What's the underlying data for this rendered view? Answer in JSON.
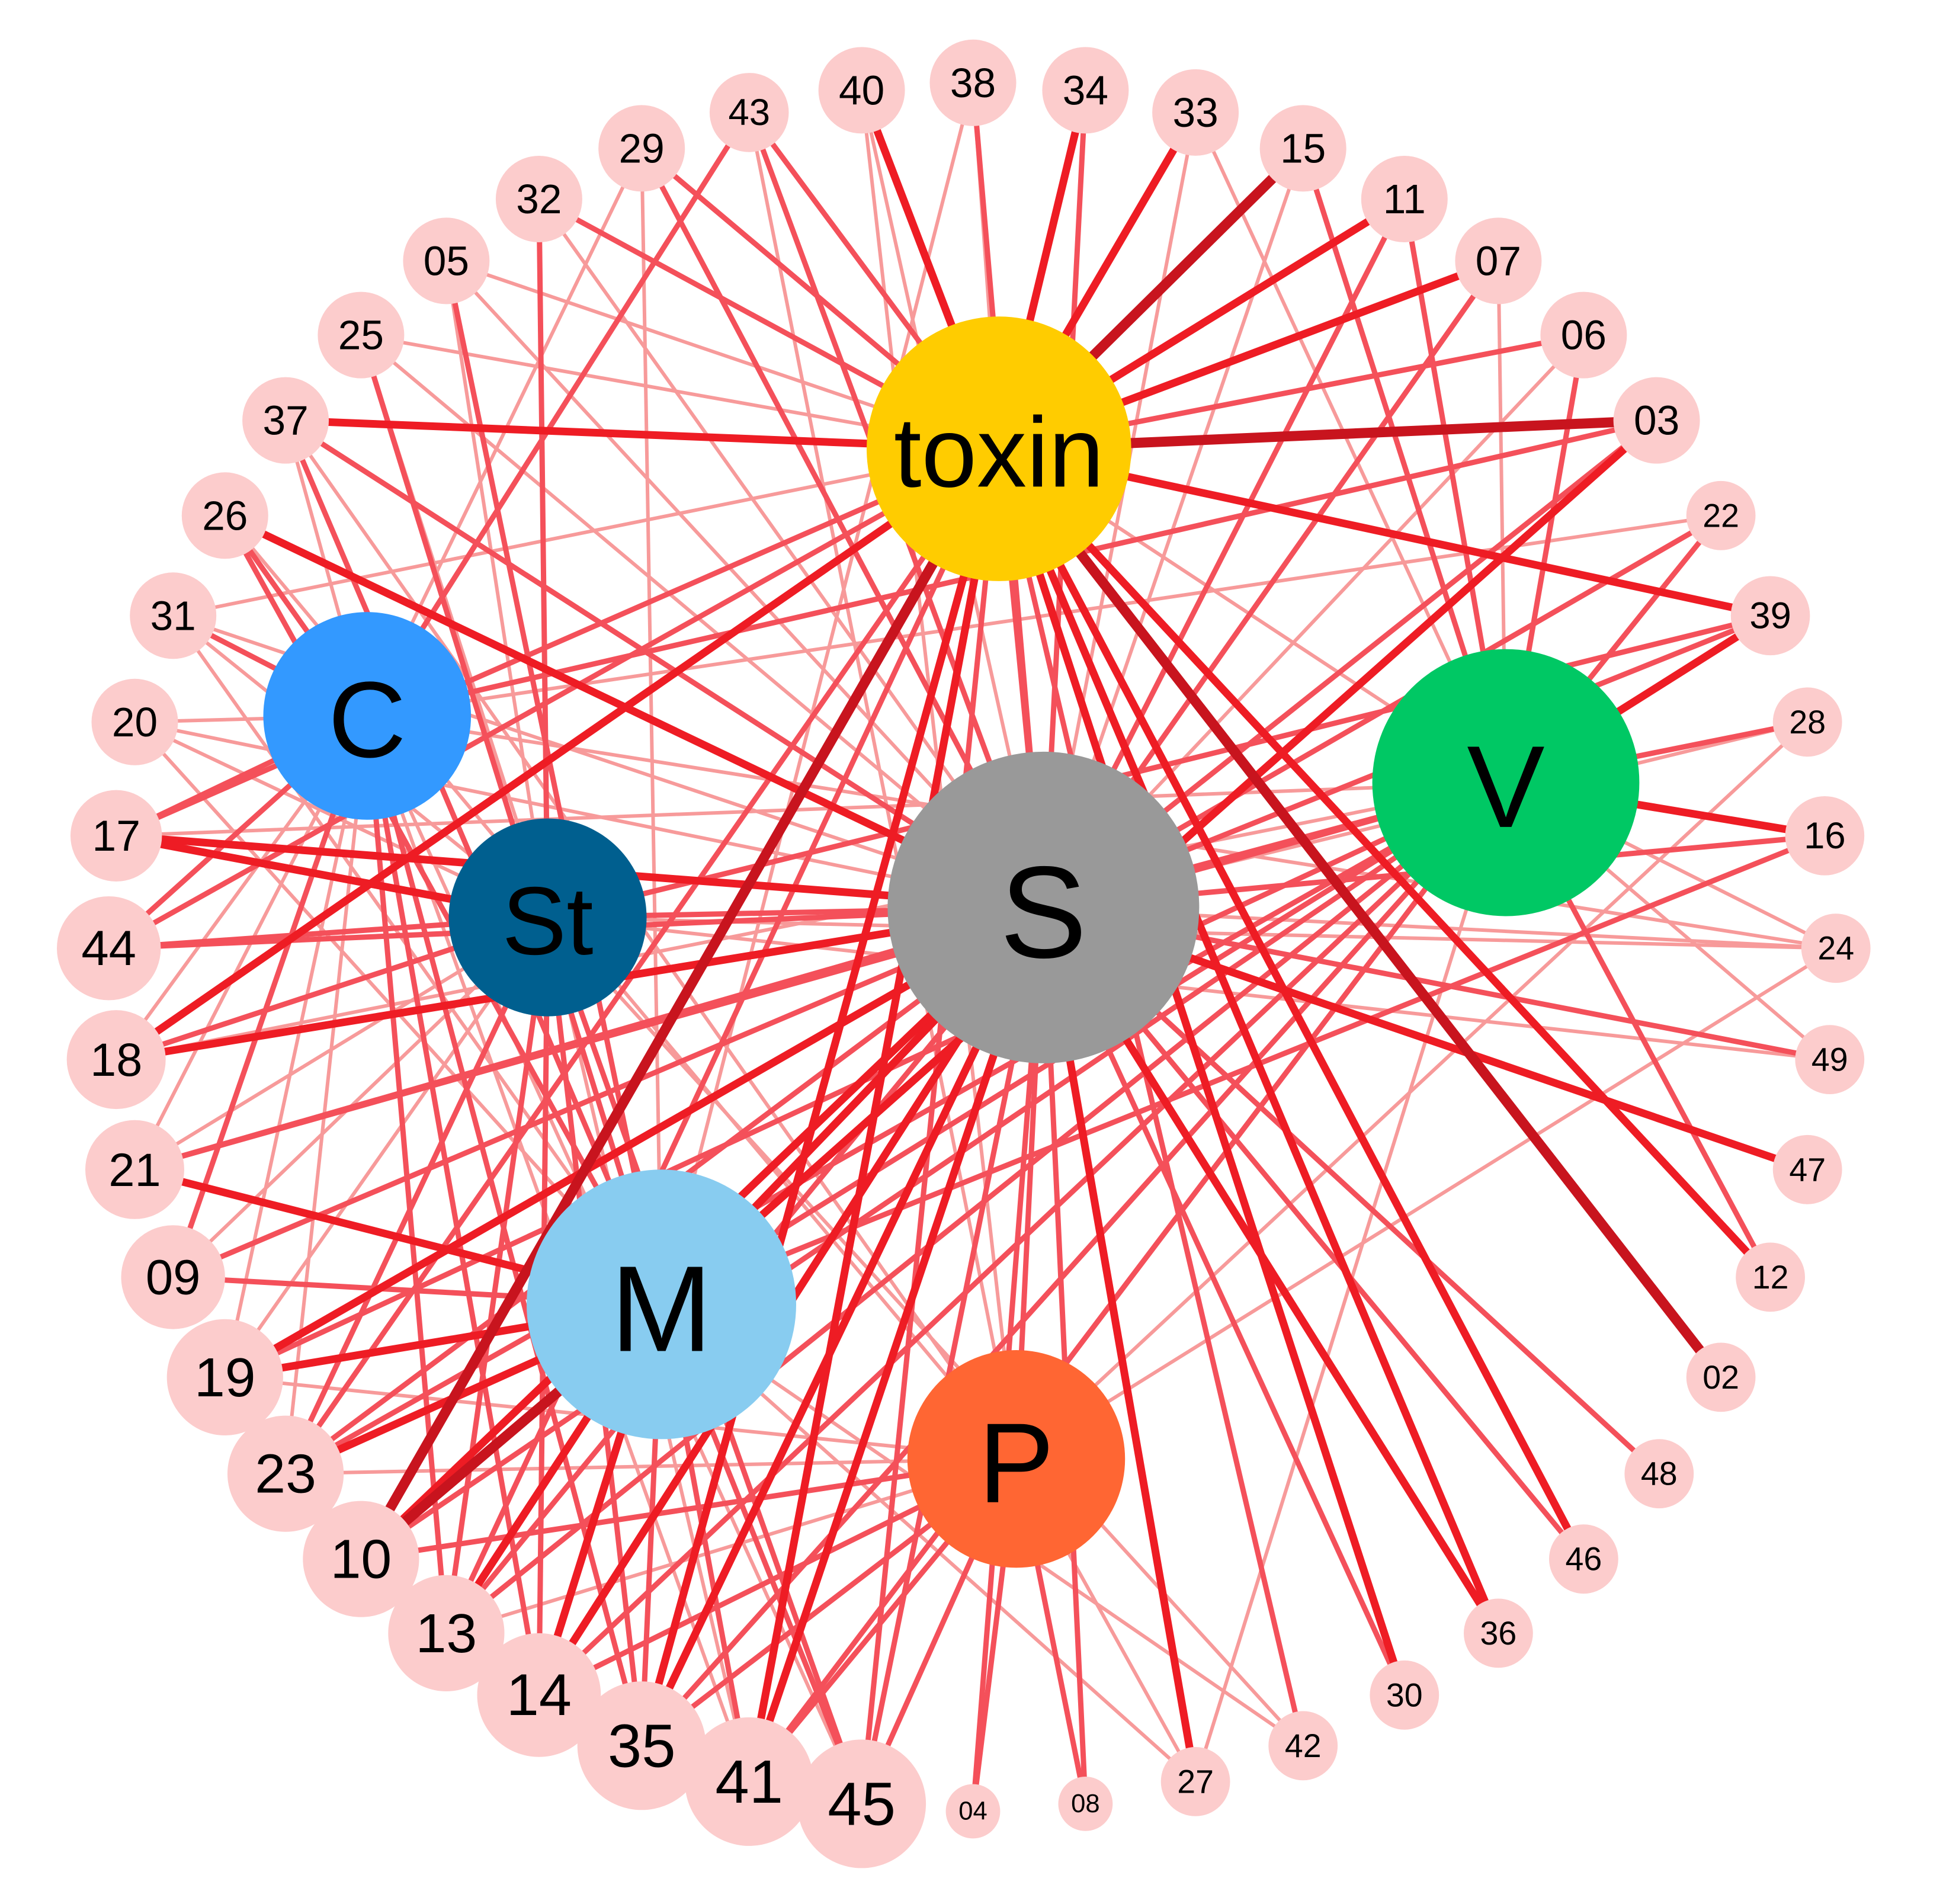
{
  "colors": {
    "peripheral_node": "#fccccc",
    "edge_light": "#f79a9a",
    "edge_mid": "#f4505a",
    "edge_strong": "#ee1c24",
    "edge_dark": "#c8141e",
    "toxin": "#ffcc00",
    "S": "#999999",
    "V": "#00c864",
    "C": "#3399ff",
    "St": "#005f8f",
    "M": "#88ccf0",
    "P": "#ff6633"
  },
  "hubs": [
    {
      "id": "toxin",
      "label": "toxin",
      "color": "#ffcc00"
    },
    {
      "id": "S",
      "label": "S",
      "color": "#999999"
    },
    {
      "id": "V",
      "label": "V",
      "color": "#00c864"
    },
    {
      "id": "C",
      "label": "C",
      "color": "#3399ff"
    },
    {
      "id": "St",
      "label": "St",
      "color": "#005f8f"
    },
    {
      "id": "M",
      "label": "M",
      "color": "#88ccf0"
    },
    {
      "id": "P",
      "label": "P",
      "color": "#ff6633"
    }
  ],
  "peripheral_nodes": [
    "40",
    "38",
    "34",
    "33",
    "15",
    "11",
    "07",
    "06",
    "03",
    "22",
    "39",
    "28",
    "16",
    "24",
    "49",
    "47",
    "12",
    "02",
    "48",
    "46",
    "36",
    "30",
    "42",
    "27",
    "08",
    "04",
    "45",
    "41",
    "35",
    "14",
    "13",
    "10",
    "23",
    "19",
    "09",
    "21",
    "18",
    "44",
    "17",
    "20",
    "31",
    "26",
    "37",
    "25",
    "05",
    "32",
    "29",
    "43"
  ],
  "edges": [
    {
      "from": "toxin",
      "to": "37",
      "w": 3
    },
    {
      "from": "toxin",
      "to": "03",
      "w": 4
    },
    {
      "from": "toxin",
      "to": "15",
      "w": 4
    },
    {
      "from": "toxin",
      "to": "11",
      "w": 3
    },
    {
      "from": "toxin",
      "to": "07",
      "w": 3
    },
    {
      "from": "toxin",
      "to": "06",
      "w": 2
    },
    {
      "from": "toxin",
      "to": "39",
      "w": 3
    },
    {
      "from": "toxin",
      "to": "40",
      "w": 3
    },
    {
      "from": "toxin",
      "to": "38",
      "w": 1
    },
    {
      "from": "toxin",
      "to": "34",
      "w": 3
    },
    {
      "from": "toxin",
      "to": "33",
      "w": 3
    },
    {
      "from": "toxin",
      "to": "43",
      "w": 2
    },
    {
      "from": "toxin",
      "to": "29",
      "w": 2
    },
    {
      "from": "toxin",
      "to": "10",
      "w": 4
    },
    {
      "from": "toxin",
      "to": "41",
      "w": 3
    },
    {
      "from": "toxin",
      "to": "35",
      "w": 3
    },
    {
      "from": "toxin",
      "to": "18",
      "w": 3
    },
    {
      "from": "toxin",
      "to": "44",
      "w": 2
    },
    {
      "from": "toxin",
      "to": "02",
      "w": 4
    },
    {
      "from": "toxin",
      "to": "12",
      "w": 3
    },
    {
      "from": "toxin",
      "to": "46",
      "w": 3
    },
    {
      "from": "toxin",
      "to": "36",
      "w": 3
    },
    {
      "from": "toxin",
      "to": "30",
      "w": 3
    },
    {
      "from": "toxin",
      "to": "42",
      "w": 2
    },
    {
      "from": "toxin",
      "to": "25",
      "w": 1
    },
    {
      "from": "toxin",
      "to": "05",
      "w": 1
    },
    {
      "from": "toxin",
      "to": "32",
      "w": 2
    },
    {
      "from": "toxin",
      "to": "17",
      "w": 2
    },
    {
      "from": "toxin",
      "to": "31",
      "w": 1
    },
    {
      "from": "toxin",
      "to": "45",
      "w": 2
    },
    {
      "from": "toxin",
      "to": "13",
      "w": 2
    },
    {
      "from": "toxin",
      "to": "23",
      "w": 2
    },
    {
      "from": "S",
      "to": "26",
      "w": 3
    },
    {
      "from": "S",
      "to": "37",
      "w": 2
    },
    {
      "from": "S",
      "to": "17",
      "w": 3
    },
    {
      "from": "S",
      "to": "18",
      "w": 3
    },
    {
      "from": "S",
      "to": "44",
      "w": 2
    },
    {
      "from": "S",
      "to": "21",
      "w": 2
    },
    {
      "from": "S",
      "to": "19",
      "w": 3
    },
    {
      "from": "S",
      "to": "23",
      "w": 2
    },
    {
      "from": "S",
      "to": "10",
      "w": 3
    },
    {
      "from": "S",
      "to": "13",
      "w": 2
    },
    {
      "from": "S",
      "to": "14",
      "w": 3
    },
    {
      "from": "S",
      "to": "35",
      "w": 3
    },
    {
      "from": "S",
      "to": "41",
      "w": 3
    },
    {
      "from": "S",
      "to": "45",
      "w": 2
    },
    {
      "from": "S",
      "to": "04",
      "w": 2
    },
    {
      "from": "S",
      "to": "08",
      "w": 2
    },
    {
      "from": "S",
      "to": "27",
      "w": 3
    },
    {
      "from": "S",
      "to": "30",
      "w": 2
    },
    {
      "from": "S",
      "to": "36",
      "w": 3
    },
    {
      "from": "S",
      "to": "46",
      "w": 2
    },
    {
      "from": "S",
      "to": "48",
      "w": 2
    },
    {
      "from": "S",
      "to": "47",
      "w": 3
    },
    {
      "from": "S",
      "to": "49",
      "w": 2
    },
    {
      "from": "S",
      "to": "24",
      "w": 1
    },
    {
      "from": "S",
      "to": "16",
      "w": 2
    },
    {
      "from": "S",
      "to": "28",
      "w": 1
    },
    {
      "from": "S",
      "to": "39",
      "w": 2
    },
    {
      "from": "S",
      "to": "22",
      "w": 2
    },
    {
      "from": "S",
      "to": "03",
      "w": 2
    },
    {
      "from": "S",
      "to": "06",
      "w": 1
    },
    {
      "from": "S",
      "to": "07",
      "w": 2
    },
    {
      "from": "S",
      "to": "11",
      "w": 2
    },
    {
      "from": "S",
      "to": "15",
      "w": 1
    },
    {
      "from": "S",
      "to": "33",
      "w": 1
    },
    {
      "from": "S",
      "to": "34",
      "w": 2
    },
    {
      "from": "S",
      "to": "38",
      "w": 2
    },
    {
      "from": "S",
      "to": "40",
      "w": 1
    },
    {
      "from": "S",
      "to": "43",
      "w": 2
    },
    {
      "from": "S",
      "to": "29",
      "w": 2
    },
    {
      "from": "S",
      "to": "32",
      "w": 1
    },
    {
      "from": "S",
      "to": "05",
      "w": 1
    },
    {
      "from": "S",
      "to": "25",
      "w": 1
    },
    {
      "from": "S",
      "to": "31",
      "w": 1
    },
    {
      "from": "S",
      "to": "20",
      "w": 1
    },
    {
      "from": "S",
      "to": "09",
      "w": 2
    },
    {
      "from": "V",
      "to": "16",
      "w": 3
    },
    {
      "from": "V",
      "to": "28",
      "w": 2
    },
    {
      "from": "V",
      "to": "39",
      "w": 3
    },
    {
      "from": "V",
      "to": "24",
      "w": 1
    },
    {
      "from": "V",
      "to": "22",
      "w": 2
    },
    {
      "from": "V",
      "to": "06",
      "w": 2
    },
    {
      "from": "V",
      "to": "07",
      "w": 1
    },
    {
      "from": "V",
      "to": "15",
      "w": 2
    },
    {
      "from": "V",
      "to": "11",
      "w": 2
    },
    {
      "from": "V",
      "to": "33",
      "w": 1
    },
    {
      "from": "V",
      "to": "49",
      "w": 1
    },
    {
      "from": "V",
      "to": "19",
      "w": 2
    },
    {
      "from": "V",
      "to": "23",
      "w": 2
    },
    {
      "from": "V",
      "to": "21",
      "w": 2
    },
    {
      "from": "V",
      "to": "10",
      "w": 2
    },
    {
      "from": "V",
      "to": "13",
      "w": 2
    },
    {
      "from": "V",
      "to": "14",
      "w": 2
    },
    {
      "from": "V",
      "to": "35",
      "w": 2
    },
    {
      "from": "V",
      "to": "41",
      "w": 2
    },
    {
      "from": "V",
      "to": "27",
      "w": 1
    },
    {
      "from": "V",
      "to": "18",
      "w": 1
    },
    {
      "from": "V",
      "to": "17",
      "w": 1
    },
    {
      "from": "V",
      "to": "12",
      "w": 2
    },
    {
      "from": "C",
      "to": "37",
      "w": 1
    },
    {
      "from": "C",
      "to": "26",
      "w": 2
    },
    {
      "from": "C",
      "to": "31",
      "w": 2
    },
    {
      "from": "C",
      "to": "20",
      "w": 1
    },
    {
      "from": "C",
      "to": "17",
      "w": 2
    },
    {
      "from": "C",
      "to": "44",
      "w": 2
    },
    {
      "from": "C",
      "to": "18",
      "w": 1
    },
    {
      "from": "C",
      "to": "21",
      "w": 1
    },
    {
      "from": "C",
      "to": "09",
      "w": 2
    },
    {
      "from": "C",
      "to": "19",
      "w": 1
    },
    {
      "from": "C",
      "to": "23",
      "w": 1
    },
    {
      "from": "C",
      "to": "13",
      "w": 2
    },
    {
      "from": "C",
      "to": "14",
      "w": 2
    },
    {
      "from": "C",
      "to": "35",
      "w": 2
    },
    {
      "from": "C",
      "to": "41",
      "w": 1
    },
    {
      "from": "C",
      "to": "45",
      "w": 1
    },
    {
      "from": "C",
      "to": "43",
      "w": 2
    },
    {
      "from": "C",
      "to": "29",
      "w": 1
    },
    {
      "from": "C",
      "to": "22",
      "w": 1
    },
    {
      "from": "C",
      "to": "03",
      "w": 2
    },
    {
      "from": "C",
      "to": "24",
      "w": 1
    },
    {
      "from": "St",
      "to": "17",
      "w": 3
    },
    {
      "from": "St",
      "to": "44",
      "w": 2
    },
    {
      "from": "St",
      "to": "18",
      "w": 2
    },
    {
      "from": "St",
      "to": "20",
      "w": 1
    },
    {
      "from": "St",
      "to": "31",
      "w": 1
    },
    {
      "from": "St",
      "to": "25",
      "w": 1
    },
    {
      "from": "St",
      "to": "32",
      "w": 2
    },
    {
      "from": "St",
      "to": "05",
      "w": 1
    },
    {
      "from": "St",
      "to": "21",
      "w": 1
    },
    {
      "from": "St",
      "to": "09",
      "w": 1
    },
    {
      "from": "St",
      "to": "19",
      "w": 1
    },
    {
      "from": "St",
      "to": "23",
      "w": 2
    },
    {
      "from": "St",
      "to": "13",
      "w": 2
    },
    {
      "from": "St",
      "to": "14",
      "w": 2
    },
    {
      "from": "St",
      "to": "35",
      "w": 2
    },
    {
      "from": "St",
      "to": "41",
      "w": 1
    },
    {
      "from": "St",
      "to": "45",
      "w": 2
    },
    {
      "from": "St",
      "to": "42",
      "w": 1
    },
    {
      "from": "St",
      "to": "24",
      "w": 1
    },
    {
      "from": "St",
      "to": "49",
      "w": 1
    },
    {
      "from": "St",
      "to": "39",
      "w": 2
    },
    {
      "from": "M",
      "to": "21",
      "w": 3
    },
    {
      "from": "M",
      "to": "19",
      "w": 3
    },
    {
      "from": "M",
      "to": "23",
      "w": 3
    },
    {
      "from": "M",
      "to": "10",
      "w": 4
    },
    {
      "from": "M",
      "to": "13",
      "w": 3
    },
    {
      "from": "M",
      "to": "14",
      "w": 3
    },
    {
      "from": "M",
      "to": "35",
      "w": 2
    },
    {
      "from": "M",
      "to": "41",
      "w": 2
    },
    {
      "from": "M",
      "to": "45",
      "w": 2
    },
    {
      "from": "M",
      "to": "26",
      "w": 2
    },
    {
      "from": "M",
      "to": "37",
      "w": 2
    },
    {
      "from": "M",
      "to": "25",
      "w": 2
    },
    {
      "from": "M",
      "to": "05",
      "w": 2
    },
    {
      "from": "M",
      "to": "29",
      "w": 1
    },
    {
      "from": "M",
      "to": "31",
      "w": 1
    },
    {
      "from": "M",
      "to": "20",
      "w": 1
    },
    {
      "from": "M",
      "to": "09",
      "w": 2
    },
    {
      "from": "M",
      "to": "03",
      "w": 3
    },
    {
      "from": "M",
      "to": "39",
      "w": 2
    },
    {
      "from": "M",
      "to": "16",
      "w": 2
    },
    {
      "from": "M",
      "to": "27",
      "w": 1
    },
    {
      "from": "M",
      "to": "42",
      "w": 1
    },
    {
      "from": "M",
      "to": "38",
      "w": 1
    },
    {
      "from": "P",
      "to": "04",
      "w": 2
    },
    {
      "from": "P",
      "to": "08",
      "w": 2
    },
    {
      "from": "P",
      "to": "45",
      "w": 2
    },
    {
      "from": "P",
      "to": "41",
      "w": 2
    },
    {
      "from": "P",
      "to": "35",
      "w": 2
    },
    {
      "from": "P",
      "to": "14",
      "w": 2
    },
    {
      "from": "P",
      "to": "13",
      "w": 1
    },
    {
      "from": "P",
      "to": "10",
      "w": 2
    },
    {
      "from": "P",
      "to": "23",
      "w": 1
    },
    {
      "from": "P",
      "to": "19",
      "w": 1
    },
    {
      "from": "P",
      "to": "27",
      "w": 1
    },
    {
      "from": "P",
      "to": "43",
      "w": 1
    },
    {
      "from": "P",
      "to": "40",
      "w": 1
    },
    {
      "from": "P",
      "to": "37",
      "w": 1
    },
    {
      "from": "P",
      "to": "26",
      "w": 1
    },
    {
      "from": "P",
      "to": "24",
      "w": 1
    },
    {
      "from": "P",
      "to": "28",
      "w": 1
    },
    {
      "from": "toxin",
      "to": "V",
      "w": 1
    },
    {
      "from": "toxin",
      "to": "S",
      "w": 2
    },
    {
      "from": "S",
      "to": "V",
      "w": 2
    },
    {
      "from": "S",
      "to": "M",
      "w": 3
    },
    {
      "from": "S",
      "to": "P",
      "w": 2
    },
    {
      "from": "S",
      "to": "St",
      "w": 2
    }
  ]
}
